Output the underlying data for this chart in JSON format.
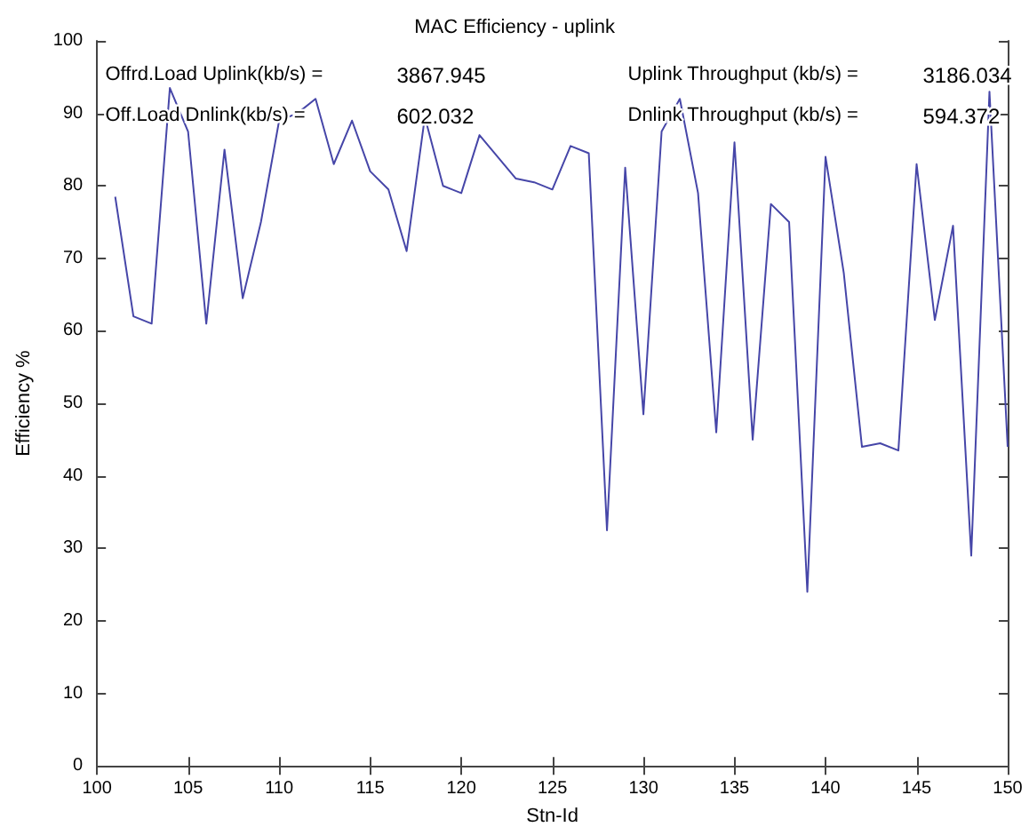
{
  "chart_data": {
    "type": "line",
    "title": "MAC Efficiency - uplink",
    "xlabel": "Stn-Id",
    "ylabel": "Efficiency %",
    "x": [
      101,
      102,
      103,
      104,
      105,
      106,
      107,
      108,
      109,
      110,
      111,
      112,
      113,
      114,
      115,
      116,
      117,
      118,
      119,
      120,
      121,
      122,
      123,
      124,
      125,
      126,
      127,
      128,
      129,
      130,
      131,
      132,
      133,
      134,
      135,
      136,
      137,
      138,
      139,
      140,
      141,
      142,
      143,
      144,
      145,
      146,
      147,
      148,
      149,
      150
    ],
    "series": [
      {
        "color": "#4646a8",
        "values": [
          78.5,
          62,
          61,
          93.5,
          87.5,
          61,
          85,
          64.5,
          75,
          89,
          90,
          92,
          83,
          89,
          82,
          79.5,
          71,
          89.5,
          80,
          79,
          87,
          84,
          81,
          80.5,
          79.5,
          85.5,
          84.5,
          32.5,
          82.5,
          48.5,
          87.5,
          92,
          79,
          46,
          86,
          45,
          77.5,
          75,
          24,
          84,
          68,
          44,
          44.5,
          43.5,
          83,
          61.5,
          74.5,
          29,
          93,
          44
        ]
      }
    ],
    "xlim": [
      100,
      150
    ],
    "xticks": [
      100,
      105,
      110,
      115,
      120,
      125,
      130,
      135,
      140,
      145,
      150
    ],
    "ylim": [
      0,
      100
    ],
    "yticks": [
      0,
      10,
      20,
      30,
      40,
      50,
      60,
      70,
      80,
      90,
      100
    ],
    "grid": false,
    "marker": "none",
    "line_style": "solid",
    "annotations": [
      "Offrd.Load Uplink(kb/s) =",
      "3867.945",
      "Uplink Throughput (kb/s) =",
      "3186.034",
      "Off.Load Dnlink(kb/s) =",
      "602.032",
      "Dnlink Throughput (kb/s) =",
      "594.372"
    ]
  }
}
